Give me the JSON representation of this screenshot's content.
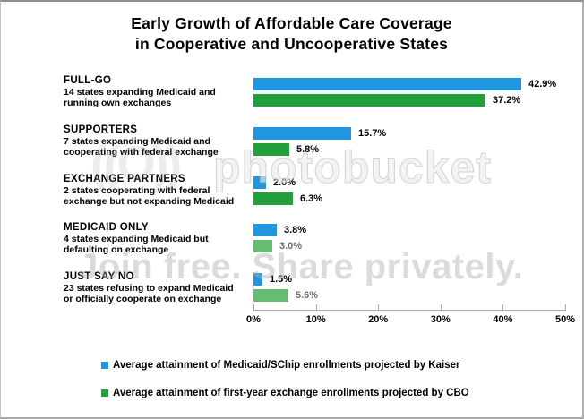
{
  "title": {
    "line1": "Early Growth of Affordable Care Coverage",
    "line2": "in Cooperative and Uncooperative States"
  },
  "chart_data": {
    "type": "bar",
    "orientation": "horizontal",
    "xlim": [
      0,
      50
    ],
    "x_tick_labels": [
      "0%",
      "10%",
      "20%",
      "30%",
      "40%",
      "50%"
    ],
    "grid": false,
    "legend_position": "bottom",
    "categories": [
      {
        "name": "FULL-GO",
        "desc1": "14 states expanding Medicaid and",
        "desc2": "running own exchanges"
      },
      {
        "name": "SUPPORTERS",
        "desc1": "7 states expanding Medicaid and",
        "desc2": "cooperating with federal exchange"
      },
      {
        "name": "EXCHANGE PARTNERS",
        "desc1": "2 states cooperating with federal",
        "desc2": "exchange but not expanding Medicaid"
      },
      {
        "name": "MEDICAID ONLY",
        "desc1": "4 states expanding Medicaid but",
        "desc2": "defaulting on exchange"
      },
      {
        "name": "JUST SAY NO",
        "desc1": "23 states refusing to expand Medicaid",
        "desc2": "or officially cooperate on exchange"
      }
    ],
    "series": [
      {
        "name": "Average attainment of Medicaid/SChip enrollments projected by Kaiser",
        "color": "#2196E0",
        "values": [
          42.9,
          15.7,
          2.0,
          3.8,
          1.5
        ],
        "value_labels": [
          "42.9%",
          "15.7%",
          "2.0%",
          "3.8%",
          "1.5%"
        ]
      },
      {
        "name": "Average attainment of first-year exchange enrollments projected by CBO",
        "color": "#21A03C",
        "color_under_watermark": "#66BD70",
        "values": [
          37.2,
          5.8,
          6.3,
          3.0,
          5.6
        ],
        "value_labels": [
          "37.2%",
          "5.8%",
          "6.3%",
          "3.0%",
          "5.6%"
        ]
      }
    ]
  },
  "watermark": {
    "brand": "photobucket",
    "camera_glyph": "((O))",
    "tagline": "Join free. Share privately."
  }
}
